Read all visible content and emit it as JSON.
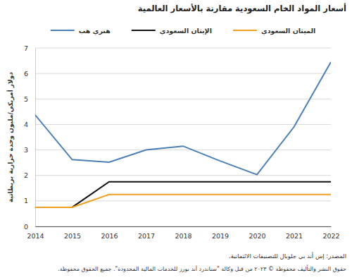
{
  "chart_data": {
    "type": "line",
    "title": "أسعار المواد الخام السعودية مقارنة بالأسعار العالمية",
    "y_label": "دولار أمريكي/مليون وحدة حرارية بريطانية",
    "source": "المصدر: إس أند بي جلوبال للتصنيفات الائتمانية.",
    "copyright": "حقوق النشر والتأليف محفوظة © ٢٠٢٣ من قبل وكالة \"ستاندرد أند بورز للخدمات المالية المحدودة\". جميع الحقوق محفوظة.",
    "x": [
      2014,
      2015,
      2016,
      2017,
      2018,
      2019,
      2020,
      2021,
      2022
    ],
    "xlim": [
      2014,
      2022
    ],
    "xticks": [
      2014,
      2015,
      2016,
      2017,
      2018,
      2019,
      2020,
      2021,
      2022
    ],
    "ylim": [
      0,
      7
    ],
    "yticks": [
      0,
      1,
      2,
      3,
      4,
      5,
      6,
      7
    ],
    "grid": true,
    "legend": "top",
    "series": [
      {
        "name": "هنري هب",
        "color": "#4a7fb5",
        "values": [
          4.37,
          2.62,
          2.52,
          3.0,
          3.15,
          2.57,
          2.03,
          3.9,
          6.45
        ]
      },
      {
        "name": "الإيثان السعودي",
        "color": "#111111",
        "values": [
          0.75,
          0.75,
          1.75,
          1.75,
          1.75,
          1.75,
          1.75,
          1.75,
          1.75
        ]
      },
      {
        "name": "الميثان السعودي",
        "color": "#f0a020",
        "values": [
          0.75,
          0.75,
          1.25,
          1.25,
          1.25,
          1.25,
          1.25,
          1.25,
          1.25
        ]
      }
    ]
  }
}
